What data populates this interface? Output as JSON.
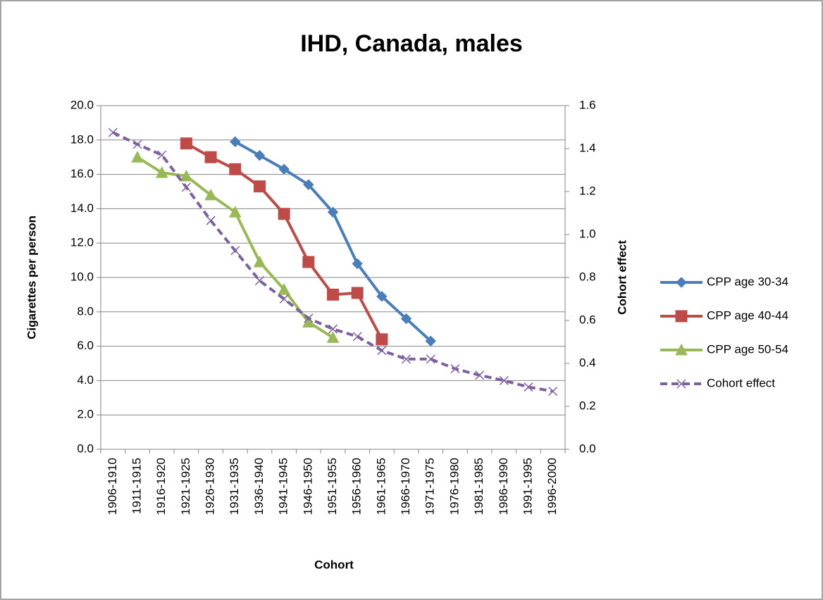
{
  "chart_data": {
    "type": "line",
    "title": "IHD, Canada, males",
    "x_label": "Cohort",
    "y_label": "Cigarettes per person",
    "y2_label": "Cohort effect",
    "categories": [
      "1906-1910",
      "1911-1915",
      "1916-1920",
      "1921-1925",
      "1926-1930",
      "1931-1935",
      "1936-1940",
      "1941-1945",
      "1946-1950",
      "1951-1955",
      "1956-1960",
      "1961-1965",
      "1966-1970",
      "1971-1975",
      "1976-1980",
      "1981-1985",
      "1986-1990",
      "1991-1995",
      "1996-2000"
    ],
    "series": [
      {
        "name": "CPP age 30-34",
        "color": "#4a7ebb",
        "marker": "diamond",
        "dashed": false,
        "values": [
          null,
          null,
          null,
          null,
          null,
          17.9,
          17.1,
          16.3,
          15.4,
          13.8,
          10.8,
          8.9,
          7.6,
          6.3,
          null,
          null,
          null,
          null,
          null
        ]
      },
      {
        "name": "CPP age 40-44",
        "color": "#be4b48",
        "marker": "square",
        "dashed": false,
        "values": [
          null,
          null,
          null,
          17.8,
          17.0,
          16.3,
          15.3,
          13.7,
          10.9,
          9.0,
          9.1,
          6.4,
          null,
          null,
          null,
          null,
          null,
          null,
          null
        ]
      },
      {
        "name": "CPP age 50-54",
        "color": "#98b954",
        "marker": "triangle",
        "dashed": false,
        "values": [
          null,
          17.0,
          16.1,
          15.9,
          14.8,
          13.8,
          10.9,
          9.3,
          7.4,
          6.5,
          null,
          null,
          null,
          null,
          null,
          null,
          null,
          null,
          null
        ]
      },
      {
        "name": "Cohort effect",
        "color": "#7d60a0",
        "marker": "x",
        "dashed": true,
        "axis": "y2",
        "values": [
          1.475,
          1.42,
          1.37,
          1.22,
          1.065,
          0.925,
          0.785,
          0.7,
          0.61,
          0.56,
          0.525,
          0.46,
          0.42,
          0.42,
          0.375,
          0.345,
          0.32,
          0.29,
          0.27
        ]
      }
    ],
    "ylim": [
      0,
      20
    ],
    "yticks": [
      {
        "value": 0,
        "label": "0.0"
      },
      {
        "value": 2,
        "label": "2.0"
      },
      {
        "value": 4,
        "label": "4.0"
      },
      {
        "value": 6,
        "label": "6.0"
      },
      {
        "value": 8,
        "label": "8.0"
      },
      {
        "value": 10,
        "label": "10.0"
      },
      {
        "value": 12,
        "label": "12.0"
      },
      {
        "value": 14,
        "label": "14.0"
      },
      {
        "value": 16,
        "label": "16.0"
      },
      {
        "value": 18,
        "label": "18.0"
      },
      {
        "value": 20,
        "label": "20.0"
      }
    ],
    "y2lim": [
      0,
      1.6
    ],
    "y2ticks": [
      {
        "value": 0,
        "label": "0.0"
      },
      {
        "value": 0.2,
        "label": "0.2"
      },
      {
        "value": 0.4,
        "label": "0.4"
      },
      {
        "value": 0.6,
        "label": "0.6"
      },
      {
        "value": 0.8,
        "label": "0.8"
      },
      {
        "value": 1,
        "label": "1.0"
      },
      {
        "value": 1.2,
        "label": "1.2"
      },
      {
        "value": 1.4,
        "label": "1.4"
      },
      {
        "value": 1.6,
        "label": "1.6"
      }
    ],
    "grid": true,
    "legend": "right"
  }
}
